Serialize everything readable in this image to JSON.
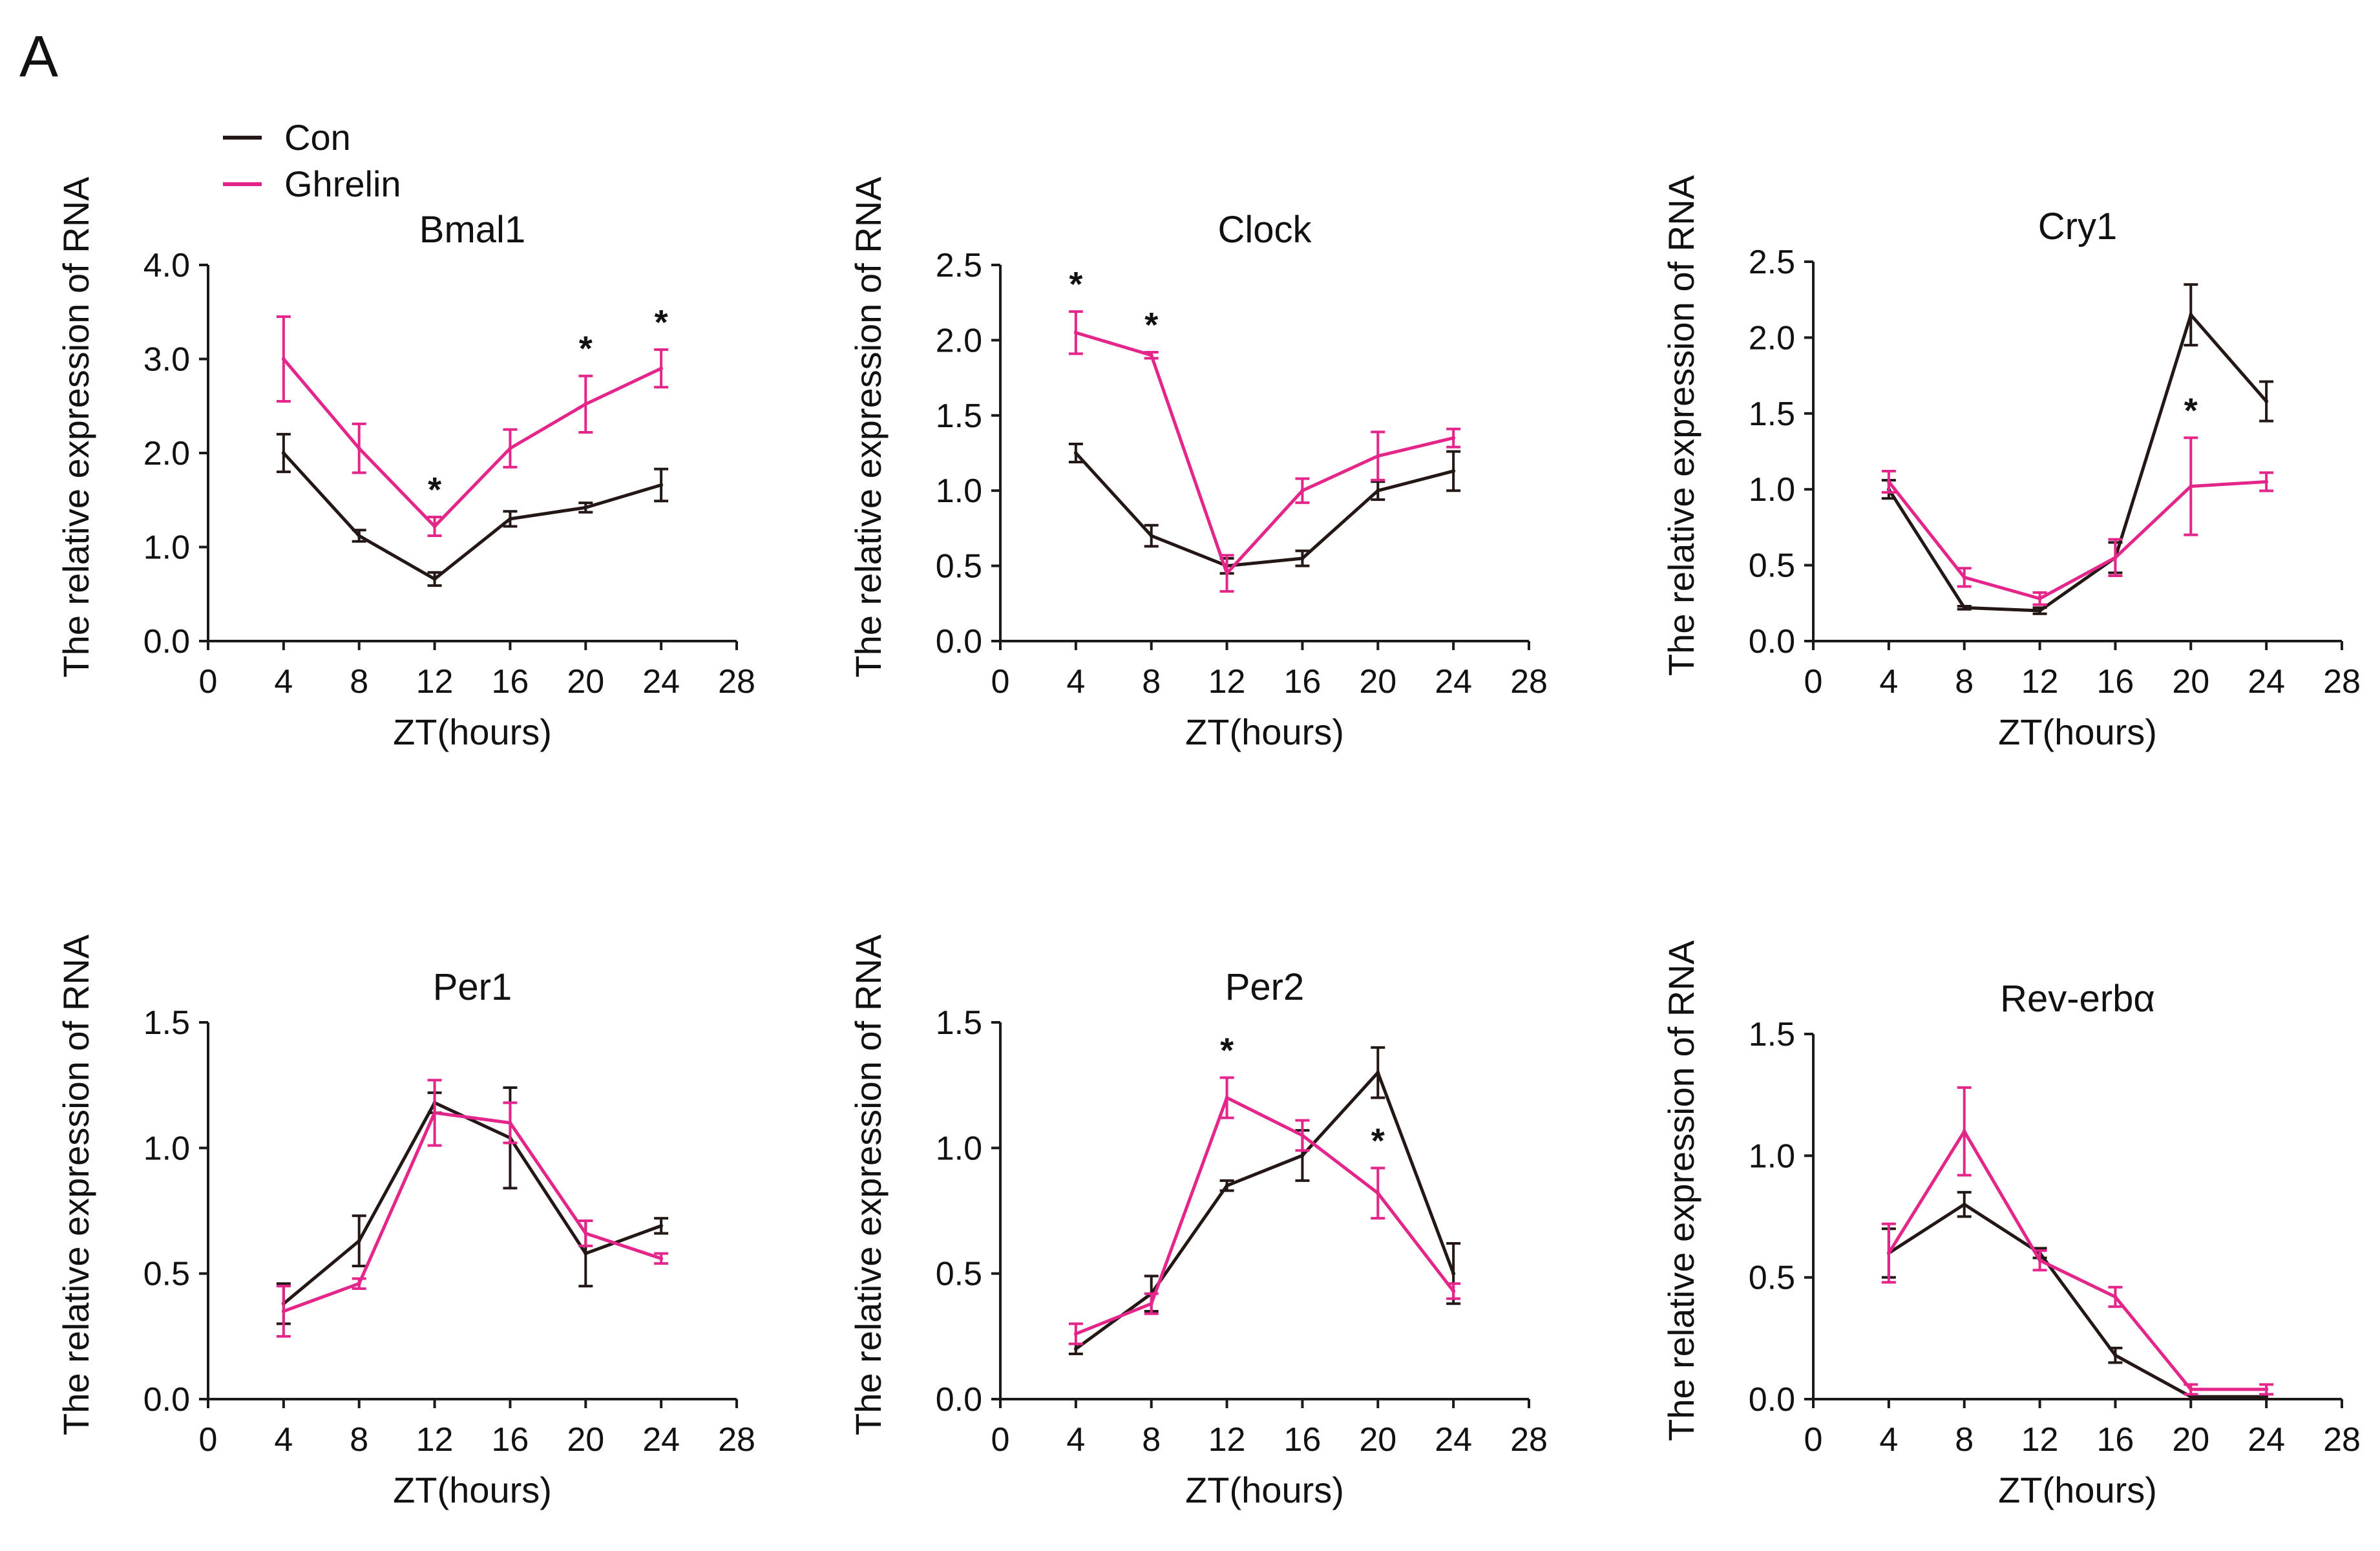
{
  "figure": {
    "panel_label": "A",
    "legend": [
      {
        "label": "Con",
        "color": "#231815"
      },
      {
        "label": "Ghrelin",
        "color": "#e4268b"
      }
    ]
  },
  "chart_data": [
    {
      "type": "line",
      "title": "Bmal1",
      "xlabel": "ZT(hours)",
      "ylabel": "The relative expression of RNA",
      "xlim": [
        0,
        28
      ],
      "xticks": [
        "0",
        "4",
        "8",
        "12",
        "16",
        "20",
        "24",
        "28"
      ],
      "ylim": [
        0,
        4
      ],
      "yticks": [
        "0.0",
        "1.0",
        "2.0",
        "3.0",
        "4.0"
      ],
      "ytick_values": [
        0,
        1,
        2,
        3,
        4
      ],
      "x": [
        4,
        8,
        12,
        16,
        20,
        24
      ],
      "series": [
        {
          "name": "Con",
          "color": "#231815",
          "values": [
            2.0,
            1.12,
            0.66,
            1.3,
            1.42,
            1.66
          ],
          "errors": [
            0.2,
            0.06,
            0.07,
            0.08,
            0.05,
            0.17
          ]
        },
        {
          "name": "Ghrelin",
          "color": "#e4268b",
          "values": [
            3.0,
            2.05,
            1.22,
            2.05,
            2.52,
            2.9
          ],
          "errors": [
            0.45,
            0.26,
            0.1,
            0.2,
            0.3,
            0.2
          ]
        }
      ],
      "annotations": [
        {
          "x": 12,
          "label": "*"
        },
        {
          "x": 20,
          "label": "*"
        },
        {
          "x": 24,
          "label": "*"
        }
      ]
    },
    {
      "type": "line",
      "title": "Clock",
      "xlabel": "ZT(hours)",
      "ylabel": "The relative expression of RNA",
      "xlim": [
        0,
        28
      ],
      "xticks": [
        "0",
        "4",
        "8",
        "12",
        "16",
        "20",
        "24",
        "28"
      ],
      "ylim": [
        0,
        2.5
      ],
      "yticks": [
        "0.0",
        "0.5",
        "1.0",
        "1.5",
        "2.0",
        "2.5"
      ],
      "ytick_values": [
        0,
        0.5,
        1,
        1.5,
        2,
        2.5
      ],
      "x": [
        4,
        8,
        12,
        16,
        20,
        24
      ],
      "series": [
        {
          "name": "Con",
          "color": "#231815",
          "values": [
            1.25,
            0.7,
            0.5,
            0.55,
            1.0,
            1.13
          ],
          "errors": [
            0.06,
            0.07,
            0.05,
            0.05,
            0.06,
            0.13
          ]
        },
        {
          "name": "Ghrelin",
          "color": "#e4268b",
          "values": [
            2.05,
            1.9,
            0.45,
            1.0,
            1.23,
            1.35
          ],
          "errors": [
            0.14,
            0.02,
            0.12,
            0.08,
            0.16,
            0.06
          ]
        }
      ],
      "annotations": [
        {
          "x": 4,
          "label": "*"
        },
        {
          "x": 8,
          "label": "*"
        }
      ]
    },
    {
      "type": "line",
      "title": "Cry1",
      "xlabel": "ZT(hours)",
      "ylabel": "The relative expression of RNA",
      "xlim": [
        0,
        28
      ],
      "xticks": [
        "0",
        "4",
        "8",
        "12",
        "16",
        "20",
        "24",
        "28"
      ],
      "ylim": [
        0,
        2.5
      ],
      "yticks": [
        "0.0",
        "0.5",
        "1.0",
        "1.5",
        "2.0",
        "2.5"
      ],
      "ytick_values": [
        0,
        0.5,
        1,
        1.5,
        2,
        2.5
      ],
      "x": [
        4,
        8,
        12,
        16,
        20,
        24
      ],
      "series": [
        {
          "name": "Con",
          "color": "#231815",
          "values": [
            1.0,
            0.22,
            0.2,
            0.55,
            2.15,
            1.58
          ],
          "errors": [
            0.06,
            0.01,
            0.02,
            0.1,
            0.2,
            0.13
          ]
        },
        {
          "name": "Ghrelin",
          "color": "#e4268b",
          "values": [
            1.05,
            0.42,
            0.28,
            0.55,
            1.02,
            1.05
          ],
          "errors": [
            0.07,
            0.06,
            0.04,
            0.12,
            0.32,
            0.06
          ]
        }
      ],
      "annotations": [
        {
          "x": 20,
          "label": "*"
        }
      ]
    },
    {
      "type": "line",
      "title": "Per1",
      "xlabel": "ZT(hours)",
      "ylabel": "The relative expression of RNA",
      "xlim": [
        0,
        28
      ],
      "xticks": [
        "0",
        "4",
        "8",
        "12",
        "16",
        "20",
        "24",
        "28"
      ],
      "ylim": [
        0,
        1.5
      ],
      "yticks": [
        "0.0",
        "0.5",
        "1.0",
        "1.5"
      ],
      "ytick_values": [
        0,
        0.5,
        1,
        1.5
      ],
      "x": [
        4,
        8,
        12,
        16,
        20,
        24
      ],
      "series": [
        {
          "name": "Con",
          "color": "#231815",
          "values": [
            0.38,
            0.63,
            1.18,
            1.04,
            0.58,
            0.69
          ],
          "errors": [
            0.08,
            0.1,
            0.04,
            0.2,
            0.13,
            0.03
          ]
        },
        {
          "name": "Ghrelin",
          "color": "#e4268b",
          "values": [
            0.35,
            0.46,
            1.14,
            1.1,
            0.66,
            0.56
          ],
          "errors": [
            0.1,
            0.02,
            0.13,
            0.08,
            0.05,
            0.02
          ]
        }
      ],
      "annotations": []
    },
    {
      "type": "line",
      "title": "Per2",
      "xlabel": "ZT(hours)",
      "ylabel": "The relative expression of RNA",
      "xlim": [
        0,
        28
      ],
      "xticks": [
        "0",
        "4",
        "8",
        "12",
        "16",
        "20",
        "24",
        "28"
      ],
      "ylim": [
        0,
        1.5
      ],
      "yticks": [
        "0.0",
        "0.5",
        "1.0",
        "1.5"
      ],
      "ytick_values": [
        0,
        0.5,
        1,
        1.5
      ],
      "x": [
        4,
        8,
        12,
        16,
        20,
        24
      ],
      "series": [
        {
          "name": "Con",
          "color": "#231815",
          "values": [
            0.2,
            0.42,
            0.85,
            0.97,
            1.3,
            0.5
          ],
          "errors": [
            0.02,
            0.07,
            0.02,
            0.1,
            0.1,
            0.12
          ]
        },
        {
          "name": "Ghrelin",
          "color": "#e4268b",
          "values": [
            0.26,
            0.38,
            1.2,
            1.05,
            0.82,
            0.43
          ],
          "errors": [
            0.04,
            0.04,
            0.08,
            0.06,
            0.1,
            0.03
          ]
        }
      ],
      "annotations": [
        {
          "x": 12,
          "label": "*"
        },
        {
          "x": 20,
          "label": "*"
        }
      ]
    },
    {
      "type": "line",
      "title": "Rev-erbα",
      "xlabel": "ZT(hours)",
      "ylabel": "The relative expression of RNA",
      "xlim": [
        0,
        28
      ],
      "xticks": [
        "0",
        "4",
        "8",
        "12",
        "16",
        "20",
        "24",
        "28"
      ],
      "ylim": [
        0,
        1.5
      ],
      "yticks": [
        "0.0",
        "0.5",
        "1.0",
        "1.5"
      ],
      "ytick_values": [
        0,
        0.5,
        1,
        1.5
      ],
      "x": [
        4,
        8,
        12,
        16,
        20,
        24
      ],
      "series": [
        {
          "name": "Con",
          "color": "#231815",
          "values": [
            0.6,
            0.8,
            0.6,
            0.18,
            0.01,
            0.01
          ],
          "errors": [
            0.1,
            0.05,
            0.02,
            0.03,
            0.01,
            0.01
          ]
        },
        {
          "name": "Ghrelin",
          "color": "#e4268b",
          "values": [
            0.6,
            1.1,
            0.57,
            0.42,
            0.04,
            0.04
          ],
          "errors": [
            0.12,
            0.18,
            0.04,
            0.04,
            0.02,
            0.02
          ]
        }
      ],
      "annotations": []
    }
  ]
}
